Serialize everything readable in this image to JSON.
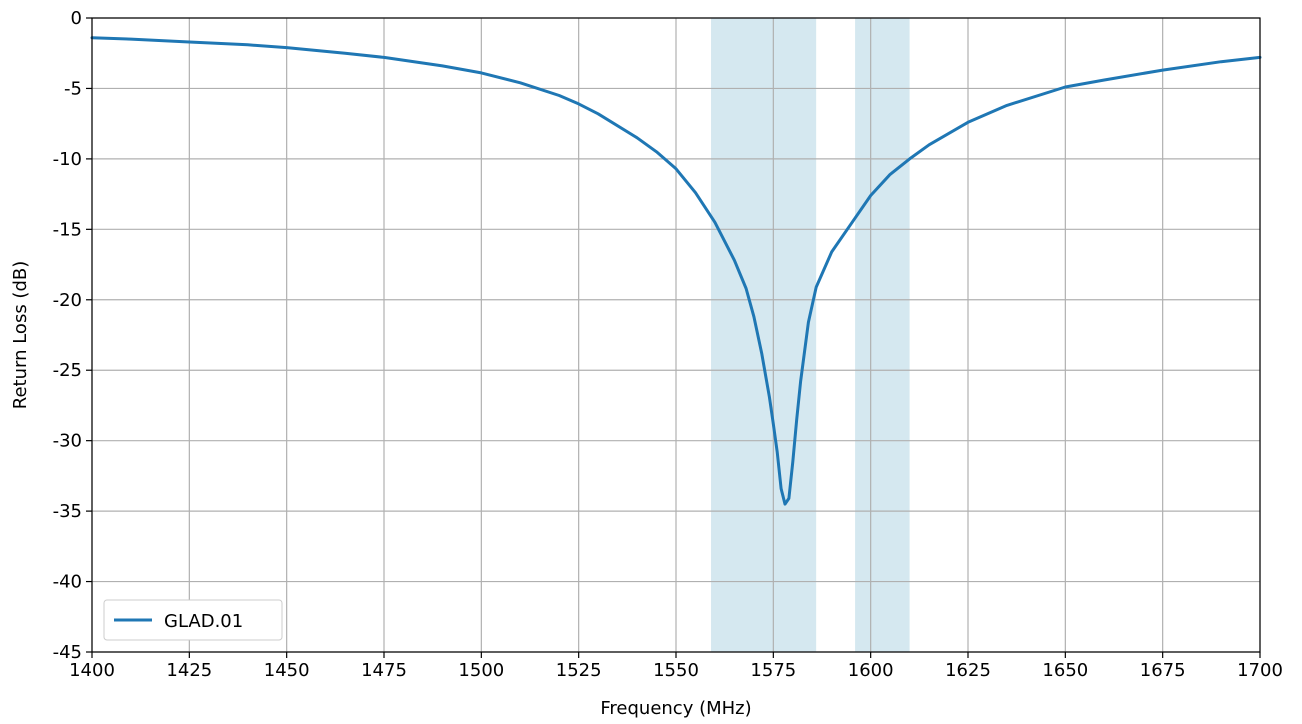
{
  "chart_data": {
    "type": "line",
    "title": "",
    "xlabel": "Frequency (MHz)",
    "ylabel": "Return Loss (dB)",
    "xlim": [
      1400,
      1700
    ],
    "ylim": [
      -45,
      0
    ],
    "xticks": [
      1400,
      1425,
      1450,
      1475,
      1500,
      1525,
      1550,
      1575,
      1600,
      1625,
      1650,
      1675,
      1700
    ],
    "yticks": [
      0,
      -5,
      -10,
      -15,
      -20,
      -25,
      -30,
      -35,
      -40,
      -45
    ],
    "grid": true,
    "legend_position": "lower-left",
    "shaded_bands": [
      {
        "x_start": 1559,
        "x_end": 1586,
        "color": "#d5e8f0"
      },
      {
        "x_start": 1596,
        "x_end": 1610,
        "color": "#d5e8f0"
      }
    ],
    "series": [
      {
        "name": "GLAD.01",
        "color": "#1f77b4",
        "x": [
          1400,
          1410,
          1425,
          1440,
          1450,
          1465,
          1475,
          1490,
          1500,
          1510,
          1520,
          1525,
          1530,
          1540,
          1545,
          1550,
          1555,
          1560,
          1565,
          1568,
          1570,
          1572,
          1574,
          1575,
          1576,
          1577,
          1578,
          1579,
          1580,
          1581,
          1582,
          1584,
          1586,
          1590,
          1595,
          1600,
          1605,
          1610,
          1615,
          1625,
          1635,
          1650,
          1660,
          1675,
          1690,
          1700
        ],
        "y": [
          -1.4,
          -1.5,
          -1.7,
          -1.9,
          -2.1,
          -2.5,
          -2.8,
          -3.4,
          -3.9,
          -4.6,
          -5.5,
          -6.1,
          -6.8,
          -8.5,
          -9.5,
          -10.7,
          -12.4,
          -14.5,
          -17.2,
          -19.2,
          -21.2,
          -23.8,
          -26.9,
          -28.8,
          -30.8,
          -33.4,
          -34.5,
          -34.1,
          -31.5,
          -28.5,
          -25.8,
          -21.6,
          -19.1,
          -16.6,
          -14.6,
          -12.6,
          -11.1,
          -10.0,
          -9.0,
          -7.4,
          -6.2,
          -4.9,
          -4.4,
          -3.7,
          -3.1,
          -2.8
        ]
      }
    ]
  }
}
